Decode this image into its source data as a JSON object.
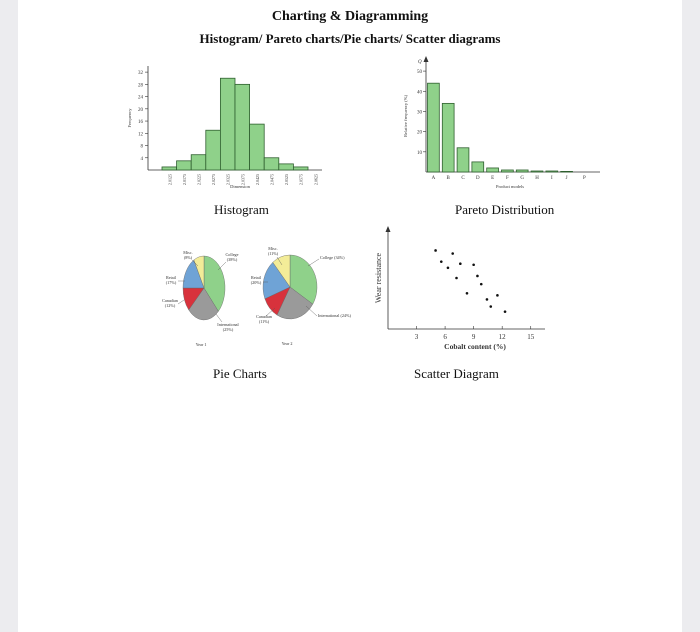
{
  "header": {
    "title": "Charting & Diagramming",
    "subtitle": "Histogram/ Pareto charts/Pie charts/ Scatter diagrams"
  },
  "captions": {
    "histogram": "Histogram",
    "pareto": "Pareto Distribution",
    "pie": "Pie Charts",
    "scatter": "Scatter Diagram"
  },
  "colors": {
    "bar_fill": "#8fd18a",
    "bar_stroke": "#2f5f2f",
    "pie_green": "#8fd18a",
    "pie_gray": "#9a9a9a",
    "pie_red": "#d8323c",
    "pie_blue": "#6fa3d6",
    "pie_yellow": "#f3ec98"
  },
  "chart_data": [
    {
      "type": "bar",
      "title": "",
      "xlabel": "Dimension",
      "ylabel": "Frequency",
      "categories": [
        "2.0125",
        "2.0175",
        "2.0225",
        "2.0275",
        "2.0325",
        "2.0375",
        "2.0425",
        "2.0475",
        "2.0525",
        "2.0575",
        "2.0625"
      ],
      "values": [
        1,
        3,
        5,
        13,
        30,
        28,
        15,
        4,
        2,
        1,
        0
      ],
      "ylim": [
        0,
        34
      ],
      "yticks": [
        "4",
        "8",
        "12",
        "16",
        "20",
        "24",
        "28",
        "32"
      ]
    },
    {
      "type": "bar",
      "title": "",
      "xlabel": "Product models",
      "ylabel": "Relative frequency (%)",
      "y_arrow_label": "Q",
      "categories": [
        "A",
        "B",
        "C",
        "D",
        "E",
        "F",
        "G",
        "H",
        "I",
        "J",
        "P"
      ],
      "values": [
        44,
        34,
        12,
        5,
        2,
        1,
        1,
        0.5,
        0.5,
        0.3,
        0
      ],
      "ylim": [
        0,
        55
      ],
      "yticks": [
        "10",
        "20",
        "30",
        "40",
        "50"
      ]
    },
    {
      "type": "pie",
      "title": "Year 1",
      "slices": [
        {
          "label": "College (38%)",
          "value": 38,
          "color": "#8fd18a"
        },
        {
          "label": "International (25%)",
          "value": 25,
          "color": "#9a9a9a"
        },
        {
          "label": "Canadian (12%)",
          "value": 12,
          "color": "#d8323c"
        },
        {
          "label": "Retail (17%)",
          "value": 17,
          "color": "#6fa3d6"
        },
        {
          "label": "Misc. (8%)",
          "value": 8,
          "color": "#f3ec98"
        }
      ]
    },
    {
      "type": "pie",
      "title": "Year 2",
      "slices": [
        {
          "label": "College (34%)",
          "value": 34,
          "color": "#8fd18a"
        },
        {
          "label": "International (24%)",
          "value": 24,
          "color": "#9a9a9a"
        },
        {
          "label": "Canadian (11%)",
          "value": 11,
          "color": "#d8323c"
        },
        {
          "label": "Retail (20%)",
          "value": 20,
          "color": "#6fa3d6"
        },
        {
          "label": "Misc. (11%)",
          "value": 11,
          "color": "#f3ec98"
        }
      ]
    },
    {
      "type": "scatter",
      "title": "",
      "xlabel": "Cobalt content (%)",
      "ylabel": "Wear resistance",
      "xticks": [
        "3",
        "6",
        "9",
        "12",
        "15"
      ],
      "xlim": [
        0,
        16.5
      ],
      "ylim": [
        0,
        10
      ],
      "points": [
        {
          "x": 5.0,
          "y": 7.7
        },
        {
          "x": 6.8,
          "y": 7.4
        },
        {
          "x": 5.6,
          "y": 6.6
        },
        {
          "x": 6.3,
          "y": 6.0
        },
        {
          "x": 7.6,
          "y": 6.4
        },
        {
          "x": 9.0,
          "y": 6.3
        },
        {
          "x": 7.2,
          "y": 5.0
        },
        {
          "x": 9.4,
          "y": 5.2
        },
        {
          "x": 9.8,
          "y": 4.4
        },
        {
          "x": 8.3,
          "y": 3.5
        },
        {
          "x": 10.4,
          "y": 2.9
        },
        {
          "x": 11.5,
          "y": 3.3
        },
        {
          "x": 12.3,
          "y": 1.7
        },
        {
          "x": 10.8,
          "y": 2.2
        }
      ]
    }
  ]
}
